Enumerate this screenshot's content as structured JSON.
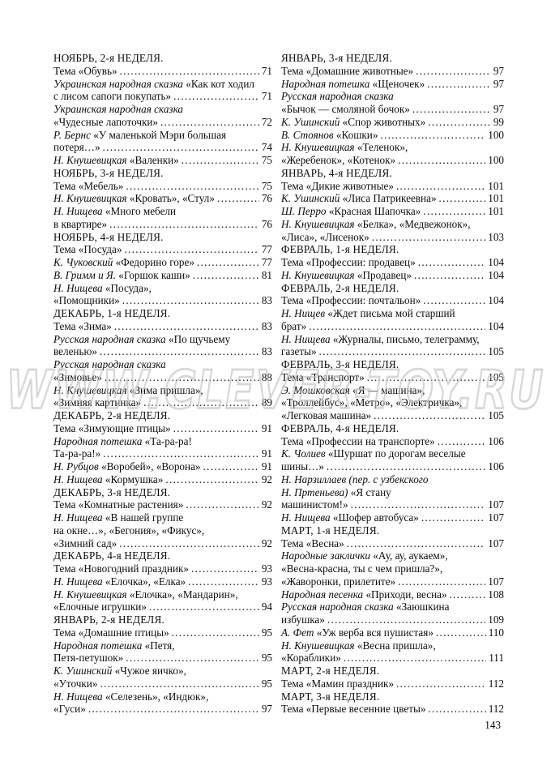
{
  "page": {
    "number": "143",
    "watermark": "WWW.CLEVER-TOY.RU"
  },
  "toc": {
    "columns": [
      {
        "lines": [
          {
            "header": true,
            "text": "НОЯБРЬ, 2-я НЕДЕЛЯ."
          },
          {
            "text": "Тема «Обувь»",
            "page": "71"
          },
          {
            "italic": "Украинская народная сказка ",
            "text": "«Как кот ходил"
          },
          {
            "text": "с лисом сапоги покупать»",
            "page": "71"
          },
          {
            "italic": "Украинская народная сказка",
            "text": ""
          },
          {
            "text": "«Чудесные лапоточки»",
            "page": "72"
          },
          {
            "italic": "Р. Бернс ",
            "text": "«У маленькой Мэри большая"
          },
          {
            "text": "потеря…»",
            "page": "74"
          },
          {
            "italic": "Н. Кнушевицкая ",
            "text": "«Валенки»",
            "page": "75"
          },
          {
            "header": true,
            "text": "НОЯБРЬ, 3-я НЕДЕЛЯ."
          },
          {
            "text": "Тема «Мебель»",
            "page": "75"
          },
          {
            "italic": "Н. Кнушевицкая ",
            "text": "«Кровать», «Стул»",
            "page": "76"
          },
          {
            "italic": "Н. Нищева ",
            "text": "«Много мебели"
          },
          {
            "text": "в квартире»",
            "page": "76"
          },
          {
            "header": true,
            "text": "НОЯБРЬ, 4-я НЕДЕЛЯ."
          },
          {
            "text": "Тема «Посуда»",
            "page": "77"
          },
          {
            "italic": "К. Чуковский ",
            "text": "«Федорино горе»",
            "page": "77"
          },
          {
            "italic": "В. Гримм и Я. ",
            "text": "«Горшок каши»",
            "page": "81"
          },
          {
            "italic": "Н. Нищева ",
            "text": "«Посуда»,"
          },
          {
            "text": "«Помощники»",
            "page": "83"
          },
          {
            "header": true,
            "text": "ДЕКАБРЬ, 1-я НЕДЕЛЯ."
          },
          {
            "text": "Тема «Зима»",
            "page": "83"
          },
          {
            "italic": "Русская народная сказка ",
            "text": "«По щучьему"
          },
          {
            "text": "веленью»",
            "page": "83"
          },
          {
            "italic": "Русская народная сказка",
            "text": ""
          },
          {
            "text": "«Зимовье»",
            "page": "88"
          },
          {
            "italic": "Н. Кнушевицкая ",
            "text": "«Зима пришла»,"
          },
          {
            "text": "«Зимняя картинка»",
            "page": "89"
          },
          {
            "header": true,
            "text": "ДЕКАБРЬ, 2-я НЕДЕЛЯ."
          },
          {
            "text": "Тема «Зимующие птицы»",
            "page": "91"
          },
          {
            "italic": "Народная потешка ",
            "text": "«Та-ра-ра!"
          },
          {
            "text": "Та-ра-ра!»",
            "page": "91"
          },
          {
            "italic": "Н. Рубцов ",
            "text": "«Воробей», «Ворона»",
            "page": "91"
          },
          {
            "italic": "Н. Нищева ",
            "text": "«Кормушка»",
            "page": "92"
          },
          {
            "header": true,
            "text": "ДЕКАБРЬ, 3-я НЕДЕЛЯ."
          },
          {
            "text": "Тема «Комнатные растения»",
            "page": "92"
          },
          {
            "italic": "Н. Нищева ",
            "text": "«В нашей группе"
          },
          {
            "text": "на окне…», «Бегония», «Фикус»,"
          },
          {
            "text": "«Зимний сад»",
            "page": "92"
          },
          {
            "header": true,
            "text": "ДЕКАБРЬ, 4-я НЕДЕЛЯ."
          },
          {
            "text": "Тема «Новогодний праздник»",
            "page": "93"
          },
          {
            "italic": "Н. Нищева ",
            "text": "«Елочка», «Елка»",
            "page": "93"
          },
          {
            "italic": "Н. Кнушевицкая ",
            "text": "«Елочка», «Мандарин»,"
          },
          {
            "text": "«Елочные игрушки»",
            "page": "94"
          },
          {
            "header": true,
            "text": "ЯНВАРЬ, 2-я НЕДЕЛЯ."
          },
          {
            "text": "Тема «Домашние птицы»",
            "page": "95"
          },
          {
            "italic": "Народная потешка ",
            "text": "«Петя,"
          },
          {
            "text": "Петя-петушок»",
            "page": "95"
          },
          {
            "italic": "К. Ушинский ",
            "text": "«Чужое яичко»,"
          },
          {
            "text": "«Уточки»",
            "page": "95"
          },
          {
            "italic": "Н. Нищева ",
            "text": "«Селезень», «Индюк»,"
          },
          {
            "text": "«Гуси»",
            "page": "97"
          }
        ]
      },
      {
        "lines": [
          {
            "header": true,
            "text": "ЯНВАРЬ, 3-я НЕДЕЛЯ."
          },
          {
            "text": "Тема «Домашние животные»",
            "page": "97"
          },
          {
            "italic": "Народная потешка ",
            "text": "«Щеночек»",
            "page": "97"
          },
          {
            "italic": "Русская народная сказка",
            "text": ""
          },
          {
            "text": "«Бычок — смоляной бочок»",
            "page": "97"
          },
          {
            "italic": "К. Ушинский ",
            "text": "«Спор животных»",
            "page": "99"
          },
          {
            "italic": "В. Стоянов ",
            "text": "«Кошки»",
            "page": "100"
          },
          {
            "italic": "Н. Кнушевицкая ",
            "text": "«Теленок»,"
          },
          {
            "text": "«Жеребенок», «Котенок»",
            "page": "100"
          },
          {
            "header": true,
            "text": "ЯНВАРЬ, 4-я НЕДЕЛЯ."
          },
          {
            "text": "Тема «Дикие животные»",
            "page": "101"
          },
          {
            "italic": "К. Ушинский ",
            "text": "«Лиса Патрикеевна»",
            "page": "101"
          },
          {
            "italic": "Ш. Перро ",
            "text": "«Красная Шапочка»",
            "page": "101"
          },
          {
            "italic": "Н. Кнушевицкая ",
            "text": "«Белка», «Медвежонок»,"
          },
          {
            "text": "«Лиса», «Лисенок»",
            "page": "103"
          },
          {
            "header": true,
            "text": "ФЕВРАЛЬ, 1-я НЕДЕЛЯ."
          },
          {
            "text": "Тема «Профессии: продавец»",
            "page": "104"
          },
          {
            "italic": "Н. Кнушевицкая ",
            "text": "«Продавец»",
            "page": "104"
          },
          {
            "header": true,
            "text": "ФЕВРАЛЬ, 2-я НЕДЕЛЯ."
          },
          {
            "text": "Тема «Профессии: почтальон»",
            "page": "104"
          },
          {
            "italic": "Н. Нищев ",
            "text": "«Ждет письма мой старший"
          },
          {
            "text": "брат»",
            "page": "104"
          },
          {
            "italic": "Н. Нищева ",
            "text": "«Журналы, письмо, телеграмму,"
          },
          {
            "text": "газеты»",
            "page": "105"
          },
          {
            "header": true,
            "text": "ФЕВРАЛЬ, 3-я НЕДЕЛЯ."
          },
          {
            "text": "Тема «Транспорт»",
            "page": "105"
          },
          {
            "italic": "Э. Мошковская ",
            "text": "«Я — машина»,"
          },
          {
            "text": "«Троллейбус», «Метро», «Электричка»,"
          },
          {
            "text": "«Легковая машина»",
            "page": "105"
          },
          {
            "header": true,
            "text": "ФЕВРАЛЬ, 4-я НЕДЕЛЯ."
          },
          {
            "text": "Тема «Профессии на транспорте»",
            "page": "106"
          },
          {
            "italic": "К. Чолиев ",
            "text": "«Шуршат по дорогам веселые"
          },
          {
            "text": "шины…»",
            "page": "106"
          },
          {
            "italic": "Н. Нарзиллаев (пер. с узбекского",
            "text": ""
          },
          {
            "italic": "Н. Пртеньева) ",
            "text": "«Я стану"
          },
          {
            "text": "машинистом!»",
            "page": "107"
          },
          {
            "italic": "Н. Нищева ",
            "text": "«Шофер автобуса»",
            "page": "107"
          },
          {
            "header": true,
            "text": "МАРТ, 1-я НЕДЕЛЯ."
          },
          {
            "text": "Тема «Весна»",
            "page": "107"
          },
          {
            "italic": "Народные заклички ",
            "text": "«Ау, ау, аукаем»,"
          },
          {
            "text": "«Весна-красна, ты с чем пришла?»,"
          },
          {
            "text": "«Жаворонки, прилетите»",
            "page": "107"
          },
          {
            "italic": "Народная песенка ",
            "text": "«Приходи, весна»",
            "page": "108"
          },
          {
            "italic": "Русская народная сказка ",
            "text": "«Заюшкина"
          },
          {
            "text": "избушка»",
            "page": "109"
          },
          {
            "italic": "А. Фет ",
            "text": "«Уж верба вся пушистая»",
            "page": "110"
          },
          {
            "italic": "Н. Кнушевицкая ",
            "text": "«Весна пришла»,"
          },
          {
            "text": "«Кораблики»",
            "page": "111"
          },
          {
            "header": true,
            "text": "МАРТ, 2-я НЕДЕЛЯ."
          },
          {
            "text": "Тема «Мамин праздник»",
            "page": "112"
          },
          {
            "header": true,
            "text": "МАРТ, 3-я НЕДЕЛЯ."
          },
          {
            "text": "Тема «Первые весенние цветы»",
            "page": "112"
          }
        ]
      }
    ]
  }
}
